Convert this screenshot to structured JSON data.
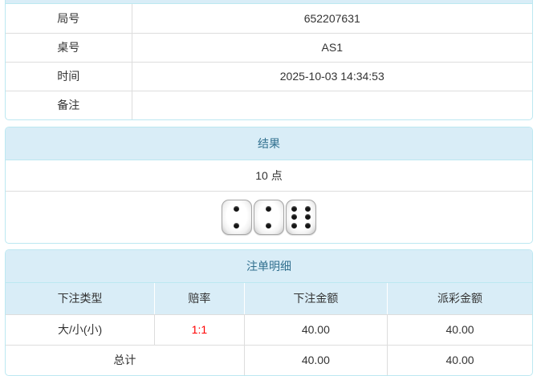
{
  "colors": {
    "panel_border": "#bce8f1",
    "panel_header_bg": "#d9edf7",
    "panel_header_text": "#31708f",
    "cell_border": "#dddddd",
    "body_text": "#333333",
    "odds_text": "#ff0000"
  },
  "game_info": {
    "rows": [
      {
        "label": "局号",
        "value": "652207631"
      },
      {
        "label": "桌号",
        "value": "AS1"
      },
      {
        "label": "时间",
        "value": "2025-10-03 14:34:53"
      },
      {
        "label": "备注",
        "value": ""
      }
    ]
  },
  "result": {
    "header": "结果",
    "points": "10 点",
    "dice": [
      2,
      2,
      6
    ]
  },
  "bet_details": {
    "header": "注单明细",
    "columns": [
      "下注类型",
      "赔率",
      "下注金额",
      "派彩金额"
    ],
    "rows": [
      {
        "type": "大/小(小)",
        "odds": "1:1",
        "bet_amount": "40.00",
        "payout_amount": "40.00"
      }
    ],
    "total": {
      "label": "总计",
      "bet_amount": "40.00",
      "payout_amount": "40.00"
    }
  }
}
